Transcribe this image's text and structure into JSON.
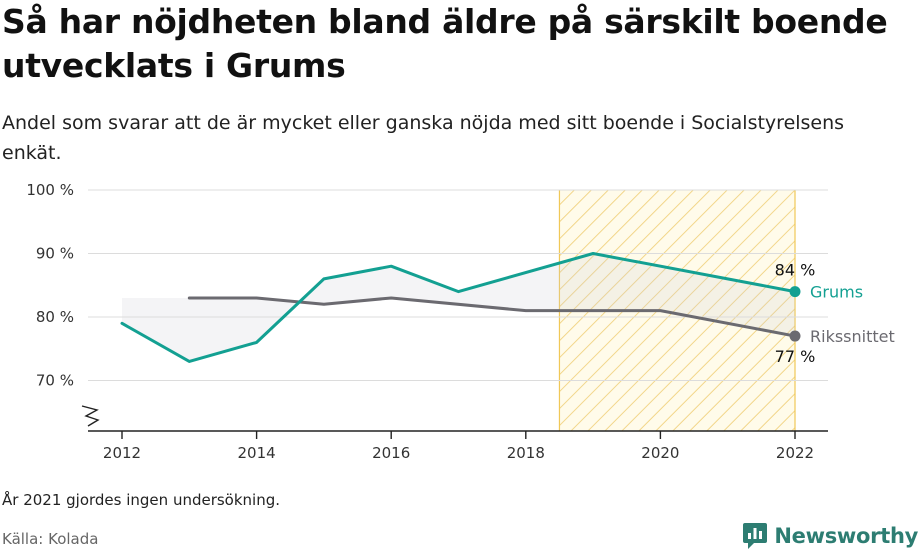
{
  "chart_data": {
    "type": "line",
    "title": "Så har nöjdheten bland äldre på särskilt boende utvecklats i Grums",
    "subtitle": "Andel som svarar att de är mycket eller ganska nöjda med sitt boende i Socialstyrelsens enkät.",
    "ylim": [
      62,
      100
    ],
    "xlim": [
      2012,
      2022
    ],
    "y_ticks": [
      70,
      80,
      90,
      100
    ],
    "y_tick_labels": [
      "70 %",
      "80 %",
      "90 %",
      "100 %"
    ],
    "x_ticks": [
      2012,
      2014,
      2016,
      2018,
      2020,
      2022
    ],
    "x_tick_labels": [
      "2012",
      "2014",
      "2016",
      "2018",
      "2020",
      "2022"
    ],
    "grid": true,
    "highlight_range": [
      2018.5,
      2022
    ],
    "series": [
      {
        "name": "Grums",
        "color": "#13a092",
        "x": [
          2012,
          2013,
          2014,
          2015,
          2016,
          2017,
          2019,
          2022
        ],
        "values": [
          79,
          73,
          76,
          86,
          88,
          84,
          90,
          84
        ],
        "end_label": "84 %"
      },
      {
        "name": "Rikssnittet",
        "color": "#6b6a70",
        "x": [
          2013,
          2014,
          2015,
          2016,
          2018,
          2020,
          2022
        ],
        "values": [
          83,
          83,
          82,
          83,
          81,
          81,
          77
        ],
        "end_label": "77 %"
      }
    ],
    "note": "År 2021 gjordes ingen undersökning.",
    "source": "Källa: Kolada"
  },
  "brand": {
    "name": "Newsworthy",
    "color": "#2d7d72",
    "icon": "newsworthy-logo-icon"
  }
}
